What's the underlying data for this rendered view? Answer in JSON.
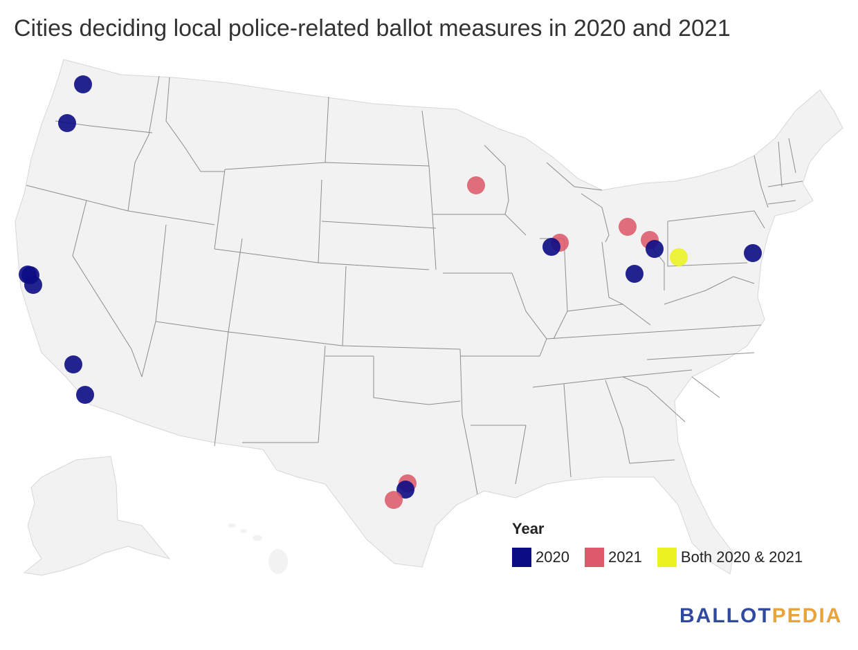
{
  "title": "Cities deciding local police-related ballot measures in 2020 and 2021",
  "legend": {
    "title": "Year",
    "items": [
      {
        "label": "2020",
        "color": "#0c0c85"
      },
      {
        "label": "2021",
        "color": "#dc5a6a"
      },
      {
        "label": "Both 2020 & 2021",
        "color": "#eaf31f"
      }
    ]
  },
  "colors": {
    "land": "#f2f2f2",
    "borders": "#8c8c8c",
    "y2020": "#0c0c85",
    "y2021": "#dc5a6a",
    "both": "#eaf31f"
  },
  "brand": {
    "part1": "BALLOT",
    "part2": "PEDIA"
  },
  "markers": [
    {
      "state": "WA",
      "category": "2020"
    },
    {
      "state": "OR",
      "category": "2020"
    },
    {
      "state": "CA",
      "category": "2020"
    },
    {
      "state": "CA",
      "category": "2020"
    },
    {
      "state": "CA",
      "category": "2020"
    },
    {
      "state": "CA",
      "category": "2020"
    },
    {
      "state": "CA",
      "category": "2020"
    },
    {
      "state": "TX",
      "category": "2021"
    },
    {
      "state": "TX",
      "category": "2020"
    },
    {
      "state": "TX",
      "category": "2021"
    },
    {
      "state": "MN",
      "category": "2021"
    },
    {
      "state": "IL",
      "category": "2021"
    },
    {
      "state": "IL",
      "category": "2020"
    },
    {
      "state": "MI",
      "category": "2021"
    },
    {
      "state": "OH",
      "category": "2021"
    },
    {
      "state": "OH",
      "category": "2020"
    },
    {
      "state": "OH",
      "category": "2020"
    },
    {
      "state": "PA",
      "category": "Both 2020 & 2021"
    },
    {
      "state": "PA",
      "category": "2020"
    }
  ]
}
